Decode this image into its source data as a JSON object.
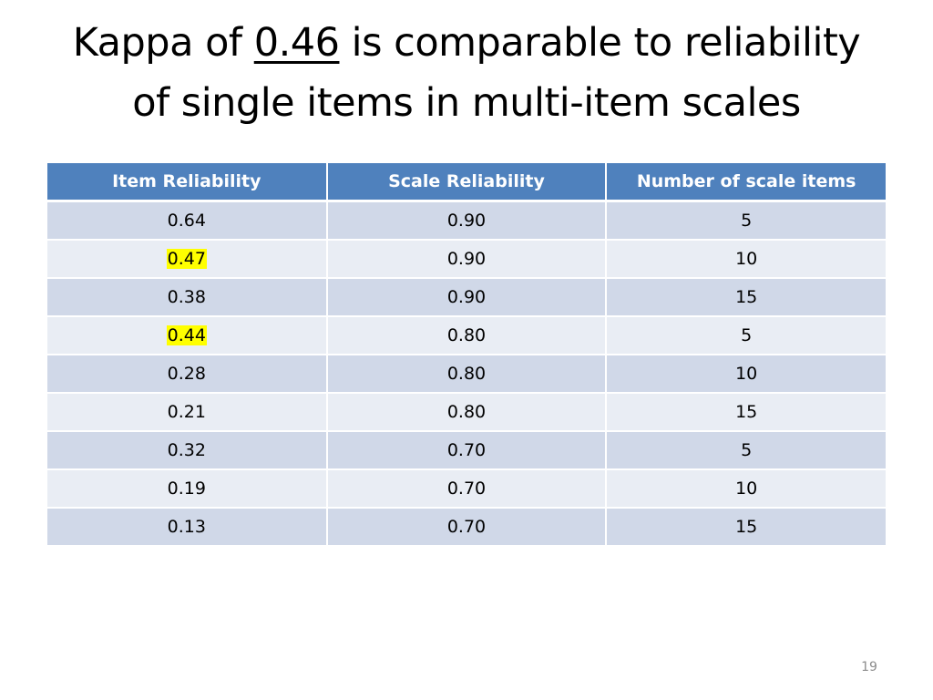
{
  "slide": {
    "title": {
      "line1_prefix": "Kappa of ",
      "line1_highlight": "0.46",
      "line1_suffix": " is comparable to reliability",
      "line2": "of single items in multi-item scales"
    },
    "table": {
      "headers": [
        "Item Reliability",
        "Scale Reliability",
        "Number of scale items"
      ],
      "rows": [
        [
          "0.64",
          "0.90",
          "5"
        ],
        [
          "0.47",
          "0.90",
          "10"
        ],
        [
          "0.38",
          "0.90",
          "15"
        ],
        [
          "0.44",
          "0.80",
          "5"
        ],
        [
          "0.28",
          "0.80",
          "10"
        ],
        [
          "0.21",
          "0.80",
          "15"
        ],
        [
          "0.32",
          "0.70",
          "5"
        ],
        [
          "0.19",
          "0.70",
          "10"
        ],
        [
          "0.13",
          "0.70",
          "15"
        ]
      ],
      "highlighted_cells": [
        "1-0",
        "3-0"
      ]
    },
    "page_number": "19"
  },
  "colors": {
    "header_fill": "#4f81bd",
    "row_odd_fill": "#d0d8e8",
    "row_even_fill": "#e9edf4",
    "highlight": "#ffff00",
    "page_number": "#8c8c8c"
  }
}
